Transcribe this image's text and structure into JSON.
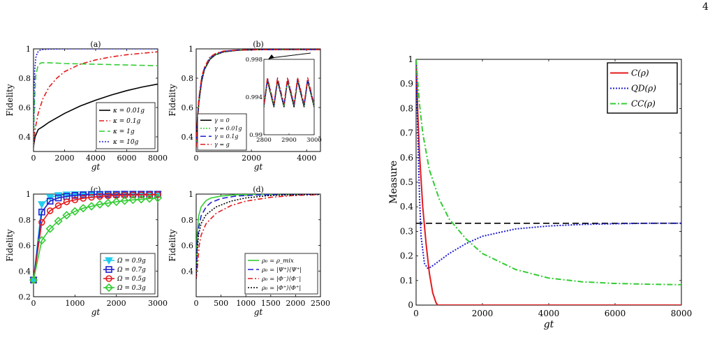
{
  "page_number": "4",
  "chart_data": [
    {
      "panel": "a",
      "type": "line",
      "title": "(a)",
      "xlabel": "gt",
      "ylabel": "Fidelity",
      "xlim": [
        0,
        8000
      ],
      "ylim": [
        0.3,
        1.0
      ],
      "xticks": [
        0,
        2000,
        4000,
        6000,
        8000
      ],
      "yticks": [
        0.4,
        0.6,
        0.8,
        1
      ],
      "ytick_labels": [
        "0.4",
        "0.6",
        "0.8",
        "1"
      ],
      "legend_position": "bottom-right",
      "series": [
        {
          "name": "κ = 0.01g",
          "color": "#000000",
          "dash": "",
          "marker": "",
          "x": [
            0,
            100,
            300,
            600,
            1000,
            2000,
            3000,
            4000,
            5000,
            6000,
            7000,
            8000
          ],
          "y": [
            0.33,
            0.4,
            0.45,
            0.47,
            0.5,
            0.56,
            0.61,
            0.65,
            0.685,
            0.715,
            0.74,
            0.76
          ]
        },
        {
          "name": "κ = 0.1g",
          "color": "#e41a1c",
          "dash": "7,3,2,3",
          "marker": "",
          "x": [
            0,
            100,
            300,
            600,
            1000,
            1500,
            2000,
            3000,
            4000,
            5000,
            6000,
            7000,
            8000
          ],
          "y": [
            0.33,
            0.45,
            0.56,
            0.66,
            0.74,
            0.8,
            0.845,
            0.895,
            0.925,
            0.945,
            0.96,
            0.97,
            0.98
          ]
        },
        {
          "name": "κ = 1g",
          "color": "#33cc33",
          "dash": "8,4",
          "marker": "",
          "x": [
            0,
            50,
            150,
            300,
            500,
            1000,
            2000,
            4000,
            6000,
            8000
          ],
          "y": [
            0.33,
            0.6,
            0.82,
            0.89,
            0.905,
            0.905,
            0.9,
            0.895,
            0.89,
            0.885
          ]
        },
        {
          "name": "κ = 10g",
          "color": "#1f1fd1",
          "dash": "2,2",
          "marker": "",
          "x": [
            0,
            30,
            80,
            150,
            250,
            400,
            600,
            1000,
            2000,
            4000,
            8000
          ],
          "y": [
            0.33,
            0.68,
            0.86,
            0.94,
            0.975,
            0.99,
            0.995,
            0.998,
            1.0,
            1.0,
            1.0
          ]
        }
      ]
    },
    {
      "panel": "b",
      "type": "line",
      "title": "(b)",
      "xlabel": "gt",
      "ylabel": "Fidelity",
      "xlim": [
        0,
        4500
      ],
      "ylim": [
        0.3,
        1.0
      ],
      "xticks": [
        0,
        2000,
        4000
      ],
      "yticks": [
        0.4,
        0.6,
        0.8,
        1
      ],
      "ytick_labels": [
        "0.4",
        "0.6",
        "0.8",
        "1"
      ],
      "legend_position": "bottom-left",
      "series": [
        {
          "name": "γ = 0",
          "color": "#000000",
          "dash": "",
          "marker": "",
          "x": [
            0,
            50,
            100,
            200,
            300,
            500,
            700,
            1000,
            1500,
            2000,
            3000,
            4500
          ],
          "y": [
            0.33,
            0.52,
            0.64,
            0.78,
            0.86,
            0.93,
            0.96,
            0.98,
            0.99,
            0.994,
            0.995,
            0.995
          ]
        },
        {
          "name": "γ = 0.01g",
          "color": "#33cc33",
          "dash": "2,2",
          "marker": "",
          "x": [
            0,
            50,
            100,
            200,
            300,
            500,
            700,
            1000,
            1500,
            2000,
            3000,
            4500
          ],
          "y": [
            0.33,
            0.53,
            0.65,
            0.79,
            0.865,
            0.935,
            0.962,
            0.982,
            0.991,
            0.994,
            0.995,
            0.995
          ]
        },
        {
          "name": "γ = 0.1g",
          "color": "#1f1fd1",
          "dash": "8,4",
          "marker": "",
          "x": [
            0,
            50,
            100,
            200,
            300,
            500,
            700,
            1000,
            1500,
            2000,
            3000,
            4500
          ],
          "y": [
            0.33,
            0.54,
            0.66,
            0.8,
            0.87,
            0.94,
            0.965,
            0.984,
            0.992,
            0.994,
            0.995,
            0.995
          ]
        },
        {
          "name": "γ = g",
          "color": "#e41a1c",
          "dash": "7,3,2,3",
          "marker": "",
          "x": [
            0,
            50,
            100,
            200,
            300,
            500,
            700,
            1000,
            1500,
            2000,
            3000,
            4500
          ],
          "y": [
            0.33,
            0.55,
            0.67,
            0.81,
            0.875,
            0.945,
            0.968,
            0.985,
            0.992,
            0.994,
            0.995,
            0.995
          ]
        }
      ],
      "inset": {
        "xlim": [
          2800,
          3000
        ],
        "ylim": [
          0.99,
          0.998
        ],
        "xticks": [
          2800,
          2900,
          3000
        ],
        "yticks": [
          0.99,
          0.994,
          0.998
        ],
        "ytick_labels": [
          "0.99",
          "0.994",
          "0.998"
        ],
        "oscillation_mean": 0.9945,
        "oscillation_amplitude": 0.0014,
        "oscillation_period": 40
      }
    },
    {
      "panel": "c",
      "type": "line",
      "title": "(c)",
      "xlabel": "gt",
      "ylabel": "Fidelity",
      "xlim": [
        0,
        3000
      ],
      "ylim": [
        0.2,
        1.0
      ],
      "xticks": [
        0,
        1000,
        2000,
        3000
      ],
      "yticks": [
        0.2,
        0.4,
        0.6,
        0.8,
        1
      ],
      "ytick_labels": [
        "0.2",
        "0.4",
        "0.6",
        "0.8",
        "1"
      ],
      "legend_position": "bottom-right",
      "series": [
        {
          "name": "Ω = 0.9g",
          "color": "#22ccee",
          "dash": "",
          "marker": "triangle-down",
          "x": [
            0,
            200,
            400,
            600,
            800,
            1000,
            1200,
            1400,
            1600,
            1800,
            2000,
            2200,
            2400,
            2600,
            2800,
            3000
          ],
          "y": [
            0.33,
            0.92,
            0.975,
            0.99,
            0.995,
            0.997,
            0.998,
            0.999,
            0.999,
            1.0,
            1.0,
            1.0,
            1.0,
            1.0,
            1.0,
            1.0
          ]
        },
        {
          "name": "Ω = 0.7g",
          "color": "#1f1fd1",
          "dash": "",
          "marker": "square",
          "x": [
            0,
            200,
            400,
            600,
            800,
            1000,
            1200,
            1400,
            1600,
            1800,
            2000,
            2200,
            2400,
            2600,
            2800,
            3000
          ],
          "y": [
            0.33,
            0.86,
            0.945,
            0.97,
            0.982,
            0.99,
            0.994,
            0.996,
            0.997,
            0.998,
            0.998,
            0.999,
            0.999,
            0.999,
            0.999,
            0.999
          ]
        },
        {
          "name": "Ω = 0.5g",
          "color": "#e41a1c",
          "dash": "",
          "marker": "circle",
          "x": [
            0,
            200,
            400,
            600,
            800,
            1000,
            1200,
            1400,
            1600,
            1800,
            2000,
            2200,
            2400,
            2600,
            2800,
            3000
          ],
          "y": [
            0.33,
            0.78,
            0.87,
            0.91,
            0.94,
            0.955,
            0.967,
            0.975,
            0.982,
            0.986,
            0.989,
            0.991,
            0.993,
            0.994,
            0.995,
            0.996
          ]
        },
        {
          "name": "Ω = 0.3g",
          "color": "#33cc33",
          "dash": "",
          "marker": "diamond",
          "x": [
            0,
            200,
            400,
            600,
            800,
            1000,
            1200,
            1400,
            1600,
            1800,
            2000,
            2200,
            2400,
            2600,
            2800,
            3000
          ],
          "y": [
            0.33,
            0.64,
            0.73,
            0.79,
            0.835,
            0.865,
            0.89,
            0.905,
            0.92,
            0.93,
            0.94,
            0.948,
            0.955,
            0.96,
            0.965,
            0.97
          ]
        }
      ]
    },
    {
      "panel": "d",
      "type": "line",
      "title": "(d)",
      "xlabel": "gt",
      "ylabel": "Fidelity",
      "xlim": [
        0,
        2500
      ],
      "ylim": [
        0.2,
        1.0
      ],
      "xticks": [
        0,
        500,
        1000,
        1500,
        2000,
        2500
      ],
      "yticks": [
        0.4,
        0.6,
        0.8,
        1
      ],
      "ytick_labels": [
        "0.4",
        "0.6",
        "0.8",
        "1"
      ],
      "legend_position": "bottom-right",
      "series": [
        {
          "name": "ρ₀ = ρ_mix",
          "color": "#33cc33",
          "dash": "",
          "marker": "",
          "x": [
            0,
            20,
            50,
            100,
            200,
            300,
            500,
            800,
            1200,
            2500
          ],
          "y": [
            0.34,
            0.7,
            0.83,
            0.9,
            0.95,
            0.97,
            0.985,
            0.995,
            0.998,
            1.0
          ]
        },
        {
          "name": "ρ₀ = |Ψ⁺⟩⟨Ψ⁺|",
          "color": "#1f1fd1",
          "dash": "8,4",
          "marker": "",
          "x": [
            0,
            20,
            50,
            100,
            200,
            300,
            500,
            800,
            1200,
            1800,
            2500
          ],
          "y": [
            0.34,
            0.62,
            0.74,
            0.83,
            0.9,
            0.935,
            0.965,
            0.985,
            0.993,
            0.997,
            1.0
          ]
        },
        {
          "name": "ρ₀ = |Φ⁻⟩⟨Φ⁻|",
          "color": "#e41a1c",
          "dash": "7,3,2,3",
          "marker": "",
          "x": [
            0,
            30,
            60,
            100,
            200,
            400,
            700,
            1000,
            1500,
            2000,
            2500
          ],
          "y": [
            0.34,
            0.45,
            0.6,
            0.68,
            0.77,
            0.85,
            0.91,
            0.945,
            0.975,
            0.99,
            0.995
          ]
        },
        {
          "name": "ρ₀ = |Φ⁺⟩⟨Φ⁺|",
          "color": "#000000",
          "dash": "2,2",
          "marker": "",
          "x": [
            0,
            20,
            50,
            100,
            200,
            400,
            700,
            1000,
            1500,
            2000,
            2500
          ],
          "y": [
            0.34,
            0.56,
            0.69,
            0.77,
            0.84,
            0.9,
            0.945,
            0.97,
            0.99,
            0.995,
            0.998
          ]
        }
      ]
    },
    {
      "panel": "main",
      "type": "line",
      "title": "",
      "xlabel": "gt",
      "ylabel": "Measure",
      "xlim": [
        0,
        8000
      ],
      "ylim": [
        0,
        1.0
      ],
      "xticks": [
        0,
        2000,
        4000,
        6000,
        8000
      ],
      "yticks": [
        0,
        0.1,
        0.2,
        0.3,
        0.4,
        0.5,
        0.6,
        0.7,
        0.8,
        0.9,
        1
      ],
      "ytick_labels": [
        "0",
        "0.1",
        "0.2",
        "0.3",
        "0.4",
        "0.5",
        "0.6",
        "0.7",
        "0.8",
        "0.9",
        "1"
      ],
      "legend_position": "top-right",
      "hline": {
        "y": 0.333,
        "color": "#000000",
        "dash": "9,5"
      },
      "series": [
        {
          "name": "C(ρ)",
          "color": "#e41a1c",
          "dash": "",
          "marker": "",
          "x": [
            0,
            50,
            100,
            200,
            300,
            400,
            500,
            600,
            650,
            700,
            8000
          ],
          "y": [
            1.0,
            0.78,
            0.62,
            0.4,
            0.25,
            0.13,
            0.05,
            0.01,
            0,
            0,
            0
          ]
        },
        {
          "name": "QD(ρ)",
          "color": "#1f1fd1",
          "dash": "2,2",
          "marker": "",
          "x": [
            0,
            50,
            100,
            150,
            250,
            350,
            450,
            700,
            1000,
            1500,
            2000,
            3000,
            4000,
            5000,
            6000,
            7000,
            8000
          ],
          "y": [
            1.0,
            0.7,
            0.45,
            0.28,
            0.17,
            0.15,
            0.155,
            0.18,
            0.21,
            0.25,
            0.28,
            0.31,
            0.322,
            0.328,
            0.331,
            0.333,
            0.333
          ]
        },
        {
          "name": "CC(ρ)",
          "color": "#33cc33",
          "dash": "8,3,2,3",
          "marker": "",
          "x": [
            0,
            100,
            200,
            400,
            700,
            1000,
            1500,
            2000,
            3000,
            4000,
            5000,
            6000,
            7000,
            8000
          ],
          "y": [
            1.0,
            0.82,
            0.7,
            0.55,
            0.43,
            0.35,
            0.27,
            0.21,
            0.145,
            0.11,
            0.095,
            0.088,
            0.085,
            0.083
          ]
        }
      ]
    }
  ]
}
